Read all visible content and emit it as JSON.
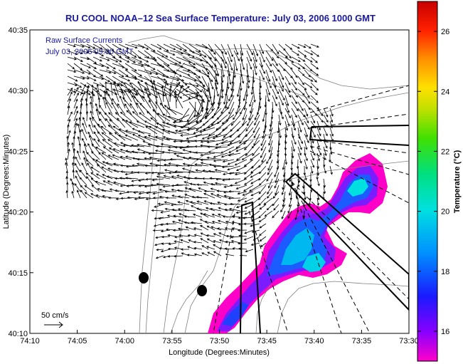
{
  "title": "RU COOL  NOAA–12  Sea Surface Temperature:  July 03, 2006 1000 GMT",
  "annotation": {
    "line1": "Raw Surface Currents",
    "line2": "July 03, 2006 09:00 GMT"
  },
  "axes": {
    "xlabel": "Longitude (Degrees:Minutes)",
    "ylabel": "Latitude (Degrees:Minutes)",
    "xticks": [
      "74:10",
      "74:05",
      "74:00",
      "73:55",
      "73:50",
      "73:45",
      "73:40",
      "73:35",
      "73:30"
    ],
    "yticks": [
      "40:35",
      "40:30",
      "40:25",
      "40:20",
      "40:15",
      "40:10"
    ]
  },
  "scale": {
    "label": "50 cm/s"
  },
  "colorbar": {
    "label": "Temperature (°C)",
    "ticks": [
      "26",
      "24",
      "22",
      "20",
      "18",
      "16"
    ],
    "range": [
      15,
      27
    ]
  },
  "colors": {
    "title": "#1a1aa0",
    "annotation": "#1a1aa0",
    "arrows": "#000000"
  }
}
